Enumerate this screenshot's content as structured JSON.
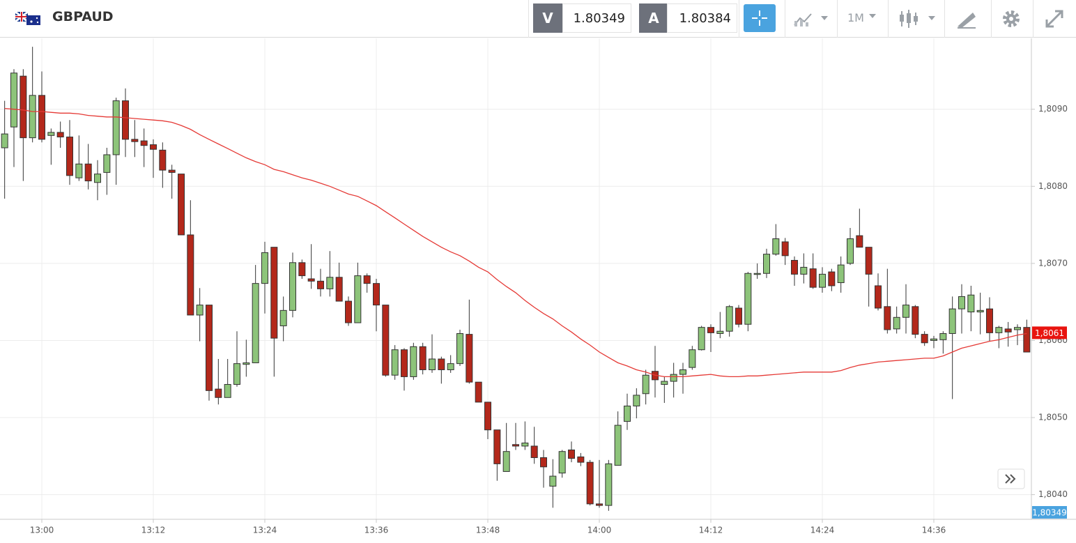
{
  "header": {
    "symbol": "GBPAUD",
    "bid_label": "V",
    "bid": 1.80349,
    "ask_label": "A",
    "ask": 1.80384,
    "timeframe": "1M"
  },
  "chart_data": {
    "type": "candlestick",
    "categories": [
      null,
      null,
      null,
      null,
      "13:00",
      null,
      null,
      null,
      null,
      null,
      null,
      null,
      null,
      null,
      null,
      null,
      "13:12",
      null,
      null,
      null,
      null,
      null,
      null,
      null,
      null,
      null,
      null,
      null,
      "13:24",
      null,
      null,
      null,
      null,
      null,
      null,
      null,
      null,
      null,
      null,
      null,
      "13:36",
      null,
      null,
      null,
      null,
      null,
      null,
      null,
      null,
      null,
      null,
      null,
      "13:48",
      null,
      null,
      null,
      null,
      null,
      null,
      null,
      null,
      null,
      null,
      null,
      "14:00",
      null,
      null,
      null,
      null,
      null,
      null,
      null,
      null,
      null,
      null,
      null,
      "14:12",
      null,
      null,
      null,
      null,
      null,
      null,
      null,
      null,
      null,
      null,
      null,
      "14:24",
      null,
      null,
      null,
      null,
      null,
      null,
      null,
      null,
      null,
      null,
      null,
      "14:36",
      null,
      null,
      null,
      null,
      null,
      null,
      null,
      null,
      null,
      null
    ],
    "open": [
      1.8085,
      1.80877,
      1.80943,
      1.80863,
      1.80918,
      1.80866,
      1.8087,
      1.80864,
      1.80811,
      1.80829,
      1.80805,
      1.80818,
      1.80841,
      1.80911,
      1.80861,
      1.80859,
      1.80854,
      1.80847,
      1.80821,
      1.80816,
      1.80737,
      1.80633,
      1.80646,
      1.80537,
      1.80526,
      1.80543,
      1.80569,
      1.80571,
      1.80674,
      1.80721,
      1.80619,
      1.80639,
      1.80701,
      1.8068,
      1.80677,
      1.80667,
      1.80682,
      1.80651,
      1.80623,
      1.80684,
      1.80674,
      1.80646,
      1.80555,
      1.80588,
      1.80553,
      1.80592,
      1.80562,
      1.80576,
      1.80562,
      1.8057,
      1.80608,
      1.80546,
      1.8052,
      1.80484,
      1.8043,
      1.80465,
      1.80463,
      1.80463,
      1.80448,
      1.80411,
      1.80428,
      1.80458,
      1.80449,
      1.80442,
      1.80388,
      1.80386,
      1.80438,
      1.80495,
      1.80515,
      1.80531,
      1.8056,
      1.80543,
      1.80547,
      1.80556,
      1.80565,
      1.80588,
      1.80617,
      1.80609,
      1.80612,
      1.80642,
      1.80621,
      1.80686,
      1.80687,
      1.80712,
      1.80728,
      1.80704,
      1.80686,
      1.80693,
      1.80669,
      1.80689,
      1.80675,
      1.807,
      1.80736,
      1.80721,
      1.80671,
      1.80644,
      1.80615,
      1.8063,
      1.80644,
      1.80608,
      1.806,
      1.80601,
      1.80609,
      1.80641,
      1.80637,
      1.80637,
      1.80641,
      1.8061,
      1.80615,
      1.80614,
      1.80617
    ],
    "high": [
      1.80911,
      1.80952,
      1.80952,
      1.80981,
      1.80949,
      1.80875,
      1.80884,
      1.80886,
      1.80866,
      1.80855,
      1.80834,
      1.8085,
      1.80915,
      1.80927,
      1.80886,
      1.80875,
      1.80861,
      1.80857,
      1.80828,
      1.80816,
      1.80782,
      1.80668,
      1.80646,
      1.80576,
      1.80576,
      1.80612,
      1.80601,
      1.80698,
      1.80728,
      1.80721,
      1.80657,
      1.80714,
      1.80705,
      1.80725,
      1.80693,
      1.80716,
      1.80701,
      1.80657,
      1.80701,
      1.80687,
      1.8068,
      1.80646,
      1.80594,
      1.8059,
      1.80597,
      1.80597,
      1.80608,
      1.80579,
      1.80581,
      1.80614,
      1.80653,
      1.80546,
      1.8052,
      1.80484,
      1.80493,
      1.80493,
      1.80495,
      1.80488,
      1.80458,
      1.80446,
      1.80458,
      1.80469,
      1.80454,
      1.80445,
      1.80445,
      1.80445,
      1.80508,
      1.80531,
      1.80538,
      1.80562,
      1.80593,
      1.80553,
      1.80571,
      1.80571,
      1.80593,
      1.80619,
      1.80621,
      1.80637,
      1.80646,
      1.80646,
      1.80689,
      1.807,
      1.80719,
      1.80751,
      1.80733,
      1.80709,
      1.80713,
      1.80713,
      1.80695,
      1.80693,
      1.80709,
      1.80746,
      1.80771,
      1.80721,
      1.80687,
      1.80693,
      1.80644,
      1.80673,
      1.80646,
      1.80612,
      1.80606,
      1.80612,
      1.80657,
      1.80673,
      1.80671,
      1.80662,
      1.80656,
      1.80619,
      1.80624,
      1.80621,
      1.80627
    ],
    "low": [
      1.80784,
      1.80825,
      1.80807,
      1.80857,
      1.80857,
      1.80828,
      1.8085,
      1.80802,
      1.80807,
      1.80796,
      1.80782,
      1.80789,
      1.80802,
      1.80838,
      1.80838,
      1.80825,
      1.80811,
      1.80798,
      1.80784,
      1.80737,
      1.80633,
      1.80599,
      1.80522,
      1.80517,
      1.80526,
      1.8054,
      1.80553,
      1.80571,
      1.80635,
      1.80553,
      1.80599,
      1.8063,
      1.8068,
      1.80667,
      1.80657,
      1.80657,
      1.80651,
      1.80619,
      1.80623,
      1.80662,
      1.80612,
      1.80553,
      1.80549,
      1.80535,
      1.80549,
      1.80556,
      1.80558,
      1.80544,
      1.80558,
      1.80567,
      1.80544,
      1.8052,
      1.80472,
      1.80418,
      1.8043,
      1.80458,
      1.80458,
      1.8044,
      1.80409,
      1.80383,
      1.80422,
      1.80442,
      1.80437,
      1.80386,
      1.80383,
      1.80379,
      1.80438,
      1.80484,
      1.80499,
      1.80517,
      1.80526,
      1.80519,
      1.80526,
      1.80531,
      1.80562,
      1.80587,
      1.80585,
      1.80603,
      1.80605,
      1.80617,
      1.80612,
      1.8068,
      1.80681,
      1.8071,
      1.80698,
      1.80671,
      1.80674,
      1.80667,
      1.80662,
      1.80664,
      1.80662,
      1.80698,
      1.80721,
      1.80644,
      1.80639,
      1.80609,
      1.80609,
      1.80609,
      1.80603,
      1.80593,
      1.8059,
      1.80583,
      1.80524,
      1.80609,
      1.80612,
      1.80608,
      1.80599,
      1.8059,
      1.80592,
      1.80594,
      1.80585
    ],
    "close": [
      1.80868,
      1.80947,
      1.80863,
      1.80918,
      1.80861,
      1.8087,
      1.80864,
      1.80814,
      1.80829,
      1.80807,
      1.80816,
      1.80841,
      1.80911,
      1.80861,
      1.80858,
      1.80853,
      1.80848,
      1.80821,
      1.80818,
      1.80737,
      1.80633,
      1.80646,
      1.80535,
      1.80526,
      1.80543,
      1.8057,
      1.80571,
      1.80674,
      1.80714,
      1.80603,
      1.80639,
      1.80701,
      1.80684,
      1.80677,
      1.80667,
      1.80682,
      1.80651,
      1.80623,
      1.80684,
      1.80674,
      1.80646,
      1.80555,
      1.80588,
      1.80553,
      1.80592,
      1.80562,
      1.80576,
      1.80562,
      1.8057,
      1.80609,
      1.80546,
      1.8052,
      1.80484,
      1.8044,
      1.80456,
      1.80463,
      1.80467,
      1.80448,
      1.80436,
      1.80424,
      1.80456,
      1.80447,
      1.80442,
      1.80388,
      1.80386,
      1.8044,
      1.8049,
      1.80515,
      1.80529,
      1.80555,
      1.80549,
      1.80547,
      1.80556,
      1.80562,
      1.80588,
      1.80617,
      1.8061,
      1.80612,
      1.80644,
      1.80621,
      1.80687,
      1.80687,
      1.80712,
      1.80732,
      1.8071,
      1.80686,
      1.80695,
      1.80669,
      1.80686,
      1.80671,
      1.80698,
      1.80732,
      1.80721,
      1.80686,
      1.80642,
      1.80614,
      1.8063,
      1.80646,
      1.80608,
      1.80597,
      1.80602,
      1.80609,
      1.80641,
      1.80657,
      1.80659,
      1.80639,
      1.8061,
      1.80617,
      1.80611,
      1.80617,
      1.80585
    ],
    "up_color": "#8dc47a",
    "down_color": "#b3281b",
    "lines": [
      {
        "color": "#e53935",
        "values": [
          1.80901,
          1.809,
          1.80899,
          1.80897,
          1.80897,
          1.80896,
          1.80895,
          1.80895,
          1.80894,
          1.80892,
          1.80891,
          1.8089,
          1.8089,
          1.80889,
          1.80888,
          1.80887,
          1.80886,
          1.80885,
          1.80883,
          1.80879,
          1.80874,
          1.80867,
          1.80861,
          1.80855,
          1.80849,
          1.80843,
          1.80837,
          1.80832,
          1.80828,
          1.80822,
          1.80819,
          1.80815,
          1.80811,
          1.80808,
          1.80804,
          1.808,
          1.80795,
          1.8079,
          1.80787,
          1.80781,
          1.80775,
          1.80767,
          1.80759,
          1.80751,
          1.80743,
          1.80735,
          1.80728,
          1.80721,
          1.80715,
          1.8071,
          1.80703,
          1.80695,
          1.80689,
          1.80679,
          1.8067,
          1.80662,
          1.80652,
          1.80643,
          1.80635,
          1.80628,
          1.80619,
          1.80611,
          1.80602,
          1.80594,
          1.80585,
          1.80578,
          1.80571,
          1.80567,
          1.80562,
          1.80559,
          1.80555,
          1.80553,
          1.80553,
          1.80553,
          1.80554,
          1.80555,
          1.80556,
          1.80554,
          1.80553,
          1.80553,
          1.80554,
          1.80554,
          1.80555,
          1.80556,
          1.80557,
          1.80558,
          1.80559,
          1.80559,
          1.80559,
          1.80559,
          1.80561,
          1.80565,
          1.80568,
          1.8057,
          1.80572,
          1.80573,
          1.80574,
          1.80575,
          1.80576,
          1.80577,
          1.80577,
          1.8058,
          1.80585,
          1.8059,
          1.80593,
          1.80596,
          1.80599,
          1.80601,
          1.80604,
          1.80607,
          1.80609
        ]
      }
    ],
    "ylim": [
      1.80368,
      1.80992
    ],
    "yticks": [
      {
        "value": 1.804,
        "label": "1,8040"
      },
      {
        "value": 1.805,
        "label": "1,8050"
      },
      {
        "value": 1.806,
        "label": "1,8060"
      },
      {
        "value": 1.807,
        "label": "1,8070"
      },
      {
        "value": 1.808,
        "label": "1,8080"
      },
      {
        "value": 1.809,
        "label": "1,8090"
      }
    ],
    "grid": true,
    "price_tags": [
      {
        "value": 1.8061,
        "label": "1,8061",
        "color": "#e8140f"
      },
      {
        "value": 1.80349,
        "label": "1,80349",
        "color": "#4aa3df"
      }
    ]
  }
}
